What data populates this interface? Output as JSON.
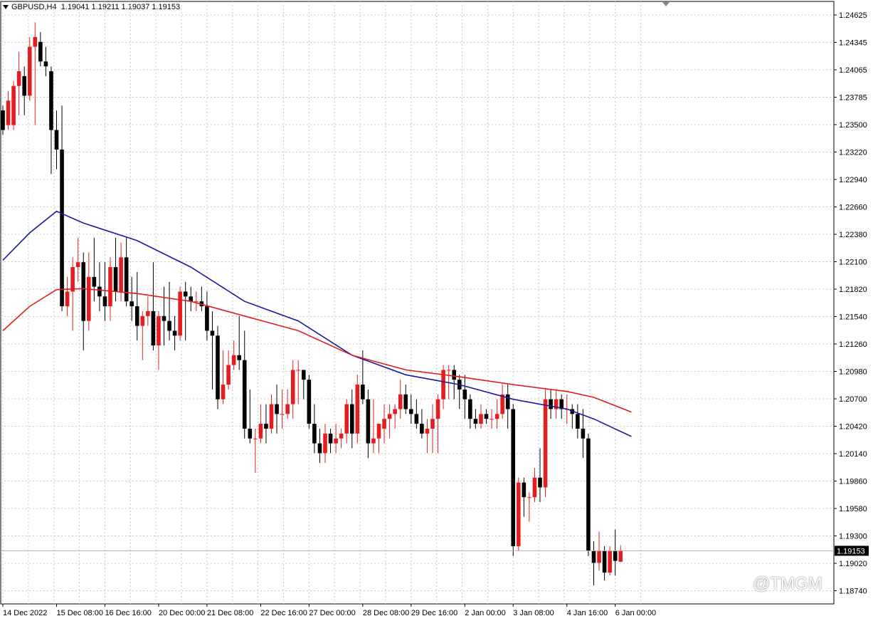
{
  "header": {
    "symbol": "GBPUSD,H4",
    "open": "1.19041",
    "high": "1.19211",
    "low": "1.19037",
    "close": "1.19153"
  },
  "watermark": "@TMGM",
  "colors": {
    "bull": "#e41e1e",
    "bear": "#000000",
    "ma_fast": "#1a1aa0",
    "ma_slow": "#e01e1e",
    "grid": "#c8c8c8",
    "price_marker_bg": "#000000"
  },
  "chart_data": {
    "type": "candlestick",
    "ylim": [
      1.1874,
      1.2476
    ],
    "y_ticks": [
      "1.24625",
      "1.24345",
      "1.24065",
      "1.23785",
      "1.23500",
      "1.23220",
      "1.22940",
      "1.22660",
      "1.22380",
      "1.22100",
      "1.21820",
      "1.21540",
      "1.21260",
      "1.20980",
      "1.20700",
      "1.20420",
      "1.20140",
      "1.19860",
      "1.19580",
      "1.19300",
      "1.19020",
      "1.18740"
    ],
    "x_ticks": [
      {
        "label": "14 Dec 2022",
        "i": 0
      },
      {
        "label": "15 Dec 08:00",
        "i": 10
      },
      {
        "label": "16 Dec 16:00",
        "i": 19
      },
      {
        "label": "20 Dec 00:00",
        "i": 29
      },
      {
        "label": "21 Dec 08:00",
        "i": 38
      },
      {
        "label": "22 Dec 16:00",
        "i": 48
      },
      {
        "label": "27 Dec 00:00",
        "i": 57
      },
      {
        "label": "28 Dec 08:00",
        "i": 67
      },
      {
        "label": "29 Dec 16:00",
        "i": 76
      },
      {
        "label": "2 Jan 00:00",
        "i": 86
      },
      {
        "label": "3 Jan 08:00",
        "i": 95
      },
      {
        "label": "4 Jan 16:00",
        "i": 105
      },
      {
        "label": "6 Jan 00:00",
        "i": 114
      }
    ],
    "last_price": "1.19153",
    "candles": [
      [
        1.2365,
        1.237,
        1.234,
        1.2345
      ],
      [
        1.235,
        1.2385,
        1.2345,
        1.2375
      ],
      [
        1.235,
        1.2395,
        1.2345,
        1.239
      ],
      [
        1.239,
        1.2425,
        1.236,
        1.2405
      ],
      [
        1.24,
        1.241,
        1.236,
        1.238
      ],
      [
        1.238,
        1.244,
        1.2375,
        1.243
      ],
      [
        1.243,
        1.2455,
        1.235,
        1.244
      ],
      [
        1.2435,
        1.2445,
        1.241,
        1.2415
      ],
      [
        1.2415,
        1.243,
        1.24,
        1.241
      ],
      [
        1.2405,
        1.241,
        1.23,
        1.2345
      ],
      [
        1.2345,
        1.2365,
        1.2305,
        1.2325
      ],
      [
        1.2325,
        1.237,
        1.216,
        1.2165
      ],
      [
        1.2165,
        1.2195,
        1.2155,
        1.218
      ],
      [
        1.218,
        1.2215,
        1.214,
        1.2205
      ],
      [
        1.2205,
        1.2235,
        1.219,
        1.221
      ],
      [
        1.221,
        1.222,
        1.212,
        1.215
      ],
      [
        1.215,
        1.222,
        1.214,
        1.2195
      ],
      [
        1.2195,
        1.2235,
        1.217,
        1.2185
      ],
      [
        1.2185,
        1.221,
        1.216,
        1.2175
      ],
      [
        1.2175,
        1.221,
        1.215,
        1.2165
      ],
      [
        1.2165,
        1.2215,
        1.215,
        1.2205
      ],
      [
        1.2205,
        1.2235,
        1.217,
        1.218
      ],
      [
        1.218,
        1.223,
        1.217,
        1.2215
      ],
      [
        1.2215,
        1.2235,
        1.2165,
        1.217
      ],
      [
        1.217,
        1.2195,
        1.215,
        1.2165
      ],
      [
        1.2165,
        1.22,
        1.213,
        1.2145
      ],
      [
        1.2145,
        1.216,
        1.211,
        1.2155
      ],
      [
        1.2155,
        1.2175,
        1.2145,
        1.216
      ],
      [
        1.216,
        1.221,
        1.212,
        1.2125
      ],
      [
        1.2125,
        1.216,
        1.21,
        1.2155
      ],
      [
        1.2155,
        1.2185,
        1.2125,
        1.215
      ],
      [
        1.215,
        1.219,
        1.213,
        1.214
      ],
      [
        1.214,
        1.2155,
        1.212,
        1.2135
      ],
      [
        1.2135,
        1.2185,
        1.213,
        1.218
      ],
      [
        1.218,
        1.219,
        1.213,
        1.2175
      ],
      [
        1.2175,
        1.2185,
        1.216,
        1.217
      ],
      [
        1.217,
        1.218,
        1.216,
        1.217
      ],
      [
        1.217,
        1.2185,
        1.216,
        1.2165
      ],
      [
        1.2165,
        1.218,
        1.213,
        1.214
      ],
      [
        1.214,
        1.216,
        1.208,
        1.2135
      ],
      [
        1.2135,
        1.2145,
        1.206,
        1.207
      ],
      [
        1.207,
        1.212,
        1.2065,
        1.2085
      ],
      [
        1.2085,
        1.212,
        1.208,
        1.2105
      ],
      [
        1.2105,
        1.213,
        1.21,
        1.2115
      ],
      [
        1.2115,
        1.2155,
        1.21,
        1.211
      ],
      [
        1.211,
        1.214,
        1.203,
        1.204
      ],
      [
        1.204,
        1.208,
        1.2025,
        1.203
      ],
      [
        1.203,
        1.204,
        1.1995,
        1.203
      ],
      [
        1.203,
        1.2065,
        1.2025,
        1.2045
      ],
      [
        1.2045,
        1.2065,
        1.2025,
        1.204
      ],
      [
        1.204,
        1.2075,
        1.2035,
        1.2065
      ],
      [
        1.2065,
        1.2085,
        1.2035,
        1.2055
      ],
      [
        1.2055,
        1.208,
        1.204,
        1.2055
      ],
      [
        1.2055,
        1.208,
        1.205,
        1.2065
      ],
      [
        1.2065,
        1.211,
        1.205,
        1.21
      ],
      [
        1.21,
        1.211,
        1.2065,
        1.21
      ],
      [
        1.21,
        1.21,
        1.207,
        1.209
      ],
      [
        1.209,
        1.2095,
        1.204,
        1.2045
      ],
      [
        1.2045,
        1.2065,
        1.2015,
        1.2025
      ],
      [
        1.2025,
        1.204,
        1.2005,
        1.2015
      ],
      [
        1.2015,
        1.2045,
        1.2005,
        1.2035
      ],
      [
        1.2035,
        1.204,
        1.2015,
        1.2025
      ],
      [
        1.2025,
        1.2045,
        1.2015,
        1.203
      ],
      [
        1.203,
        1.204,
        1.202,
        1.2035
      ],
      [
        1.2035,
        1.207,
        1.2025,
        1.2065
      ],
      [
        1.2065,
        1.208,
        1.202,
        1.2035
      ],
      [
        1.2035,
        1.2095,
        1.2025,
        1.2085
      ],
      [
        1.2085,
        1.212,
        1.2065,
        1.207
      ],
      [
        1.207,
        1.208,
        1.201,
        1.2025
      ],
      [
        1.2025,
        1.207,
        1.2015,
        1.203
      ],
      [
        1.203,
        1.2045,
        1.2015,
        1.2045
      ],
      [
        1.204,
        1.2065,
        1.2025,
        1.205
      ],
      [
        1.205,
        1.2065,
        1.203,
        1.2055
      ],
      [
        1.2055,
        1.2065,
        1.204,
        1.206
      ],
      [
        1.206,
        1.209,
        1.205,
        1.2075
      ],
      [
        1.2075,
        1.2085,
        1.2055,
        1.206
      ],
      [
        1.206,
        1.2075,
        1.2045,
        1.2055
      ],
      [
        1.2055,
        1.207,
        1.204,
        1.2045
      ],
      [
        1.2045,
        1.206,
        1.203,
        1.2035
      ],
      [
        1.2035,
        1.205,
        1.2015,
        1.204
      ],
      [
        1.204,
        1.2065,
        1.2015,
        1.205
      ],
      [
        1.205,
        1.2075,
        1.2015,
        1.207
      ],
      [
        1.207,
        1.2105,
        1.206,
        1.21
      ],
      [
        1.21,
        1.2105,
        1.207,
        1.21
      ],
      [
        1.21,
        1.2105,
        1.207,
        1.209
      ],
      [
        1.209,
        1.2095,
        1.206,
        1.208
      ],
      [
        1.208,
        1.2095,
        1.205,
        1.207
      ],
      [
        1.207,
        1.2075,
        1.204,
        1.205
      ],
      [
        1.205,
        1.206,
        1.204,
        1.2045
      ],
      [
        1.2045,
        1.2065,
        1.204,
        1.2055
      ],
      [
        1.2055,
        1.206,
        1.2045,
        1.205
      ],
      [
        1.205,
        1.206,
        1.204,
        1.205
      ],
      [
        1.205,
        1.207,
        1.204,
        1.2055
      ],
      [
        1.2055,
        1.2085,
        1.205,
        1.2075
      ],
      [
        1.2075,
        1.2085,
        1.204,
        1.206
      ],
      [
        1.206,
        1.2065,
        1.191,
        1.192
      ],
      [
        1.192,
        1.199,
        1.1915,
        1.1985
      ],
      [
        1.1985,
        1.199,
        1.195,
        1.197
      ],
      [
        1.197,
        1.1975,
        1.1945,
        1.197
      ],
      [
        1.197,
        1.2,
        1.1965,
        1.199
      ],
      [
        1.199,
        1.202,
        1.1965,
        1.198
      ],
      [
        1.198,
        1.208,
        1.197,
        1.207
      ],
      [
        1.207,
        1.208,
        1.205,
        1.206
      ],
      [
        1.206,
        1.208,
        1.205,
        1.207
      ],
      [
        1.207,
        1.2075,
        1.205,
        1.206
      ],
      [
        1.206,
        1.2075,
        1.2045,
        1.206
      ],
      [
        1.206,
        1.2065,
        1.204,
        1.2055
      ],
      [
        1.2055,
        1.2065,
        1.203,
        1.204
      ],
      [
        1.204,
        1.206,
        1.201,
        1.203
      ],
      [
        1.203,
        1.2035,
        1.191,
        1.1915
      ],
      [
        1.1915,
        1.1925,
        1.188,
        1.1903
      ],
      [
        1.1903,
        1.1935,
        1.1895,
        1.1915
      ],
      [
        1.1915,
        1.192,
        1.1885,
        1.1893
      ],
      [
        1.1893,
        1.192,
        1.189,
        1.1915
      ],
      [
        1.1915,
        1.1937,
        1.189,
        1.1905
      ],
      [
        1.19041,
        1.19211,
        1.19037,
        1.19153
      ]
    ],
    "series": [
      {
        "values": [
          [
            0,
            1.2212
          ],
          [
            5,
            1.224
          ],
          [
            10,
            1.2262
          ],
          [
            15,
            1.225
          ],
          [
            25,
            1.2232
          ],
          [
            35,
            1.2205
          ],
          [
            45,
            1.217
          ],
          [
            55,
            1.215
          ],
          [
            65,
            1.2115
          ],
          [
            75,
            1.2095
          ],
          [
            85,
            1.2085
          ],
          [
            95,
            1.207
          ],
          [
            105,
            1.206
          ],
          [
            110,
            1.205
          ],
          [
            117,
            1.2032
          ]
        ]
      },
      {
        "values": [
          [
            0,
            1.214
          ],
          [
            5,
            1.2165
          ],
          [
            10,
            1.2182
          ],
          [
            15,
            1.2183
          ],
          [
            25,
            1.2178
          ],
          [
            35,
            1.217
          ],
          [
            45,
            1.2155
          ],
          [
            55,
            1.214
          ],
          [
            65,
            1.2115
          ],
          [
            75,
            1.21
          ],
          [
            85,
            1.2093
          ],
          [
            95,
            1.2085
          ],
          [
            105,
            1.2078
          ],
          [
            110,
            1.2072
          ],
          [
            117,
            1.2057
          ]
        ]
      }
    ]
  }
}
